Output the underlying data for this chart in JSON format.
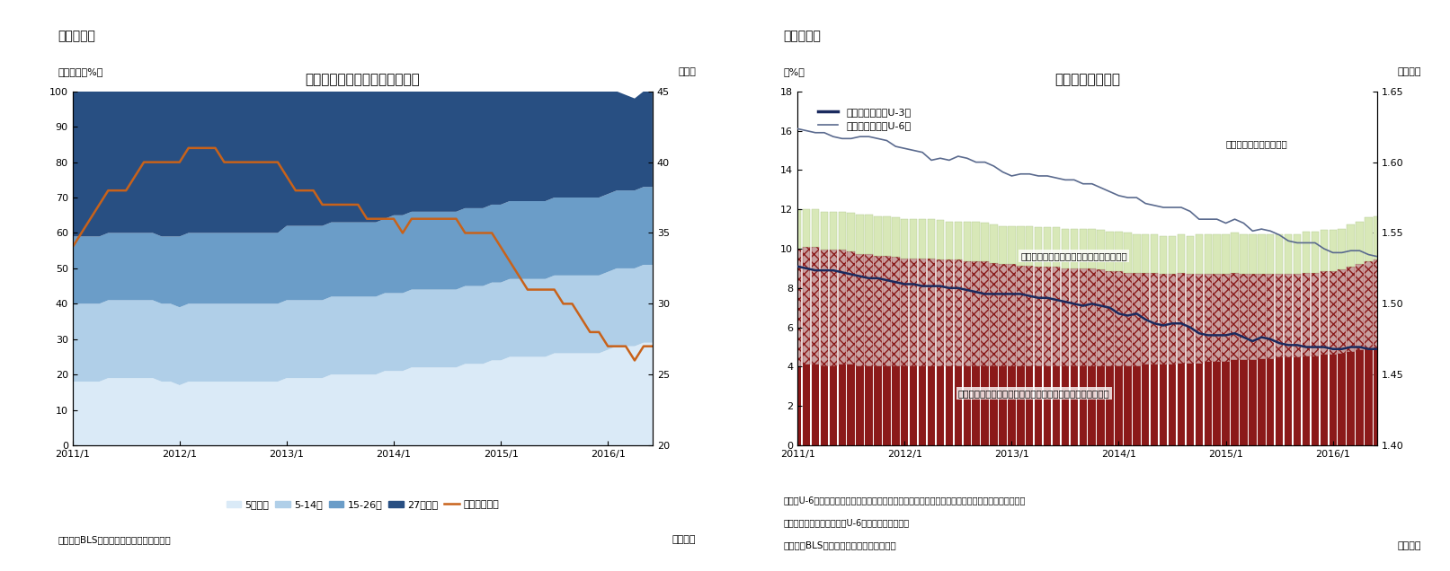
{
  "fig7": {
    "title": "失業期間の分布と平均失業期間",
    "panel_label": "（図表７）",
    "ylabel_left": "（シェア、%）",
    "ylabel_right": "（週）",
    "ylim_left": [
      0,
      100
    ],
    "ylim_right": [
      20,
      45
    ],
    "yticks_left": [
      0,
      10,
      20,
      30,
      40,
      50,
      60,
      70,
      80,
      90,
      100
    ],
    "yticks_right": [
      20,
      25,
      30,
      35,
      40,
      45
    ],
    "source": "（資料）BLSよりニッセイ基礎研究所作成",
    "footnote": "（月次）",
    "colors": {
      "under5": "#daeaf7",
      "5to14": "#b0cfe8",
      "15to26": "#6b9dc8",
      "over27": "#284f82",
      "avg_line": "#c8621a"
    },
    "legend_labels": [
      "5週未満",
      "5-14週",
      "15-26週",
      "27週以上",
      "平均（右軸）"
    ],
    "under5": [
      18,
      18,
      18,
      18,
      19,
      19,
      19,
      19,
      19,
      19,
      18,
      18,
      17,
      18,
      18,
      18,
      18,
      18,
      18,
      18,
      18,
      18,
      18,
      18,
      19,
      19,
      19,
      19,
      19,
      20,
      20,
      20,
      20,
      20,
      20,
      21,
      21,
      21,
      22,
      22,
      22,
      22,
      22,
      22,
      23,
      23,
      23,
      24,
      24,
      25,
      25,
      25,
      25,
      25,
      26,
      26,
      26,
      26,
      26,
      26,
      27,
      28,
      28,
      28,
      29,
      29
    ],
    "5to14": [
      22,
      22,
      22,
      22,
      22,
      22,
      22,
      22,
      22,
      22,
      22,
      22,
      22,
      22,
      22,
      22,
      22,
      22,
      22,
      22,
      22,
      22,
      22,
      22,
      22,
      22,
      22,
      22,
      22,
      22,
      22,
      22,
      22,
      22,
      22,
      22,
      22,
      22,
      22,
      22,
      22,
      22,
      22,
      22,
      22,
      22,
      22,
      22,
      22,
      22,
      22,
      22,
      22,
      22,
      22,
      22,
      22,
      22,
      22,
      22,
      22,
      22,
      22,
      22,
      22,
      22
    ],
    "15to26": [
      19,
      19,
      19,
      19,
      19,
      19,
      19,
      19,
      19,
      19,
      19,
      19,
      20,
      20,
      20,
      20,
      20,
      20,
      20,
      20,
      20,
      20,
      20,
      20,
      21,
      21,
      21,
      21,
      21,
      21,
      21,
      21,
      21,
      21,
      21,
      21,
      22,
      22,
      22,
      22,
      22,
      22,
      22,
      22,
      22,
      22,
      22,
      22,
      22,
      22,
      22,
      22,
      22,
      22,
      22,
      22,
      22,
      22,
      22,
      22,
      22,
      22,
      22,
      22,
      22,
      22
    ],
    "over27": [
      41,
      41,
      41,
      41,
      40,
      40,
      40,
      40,
      40,
      40,
      41,
      42,
      41,
      40,
      40,
      40,
      40,
      40,
      40,
      40,
      40,
      40,
      40,
      40,
      38,
      38,
      38,
      38,
      38,
      37,
      37,
      37,
      37,
      37,
      37,
      37,
      35,
      35,
      34,
      34,
      34,
      34,
      34,
      34,
      33,
      33,
      33,
      32,
      32,
      31,
      31,
      31,
      31,
      31,
      30,
      30,
      30,
      30,
      30,
      30,
      29,
      28,
      27,
      26,
      27,
      27
    ],
    "avg_weeks": [
      34,
      35,
      36,
      37,
      38,
      38,
      38,
      39,
      40,
      40,
      40,
      40,
      40,
      41,
      41,
      41,
      41,
      40,
      40,
      40,
      40,
      40,
      40,
      40,
      39,
      38,
      38,
      38,
      37,
      37,
      37,
      37,
      37,
      36,
      36,
      36,
      36,
      35,
      36,
      36,
      36,
      36,
      36,
      36,
      35,
      35,
      35,
      35,
      34,
      33,
      32,
      31,
      31,
      31,
      31,
      30,
      30,
      29,
      28,
      28,
      27,
      27,
      27,
      26,
      27,
      27
    ],
    "xtick_positions": [
      0,
      12,
      24,
      36,
      48,
      60
    ],
    "xtick_labels": [
      "2011/1",
      "2012/1",
      "2013/1",
      "2014/1",
      "2015/1",
      "2016/1"
    ]
  },
  "fig8": {
    "title": "広義失業率の推移",
    "panel_label": "（図表８）",
    "ylabel_left": "（%）",
    "ylabel_right": "（億人）",
    "ylim_left": [
      0,
      18
    ],
    "ylim_right": [
      1.4,
      1.65
    ],
    "yticks_left": [
      0,
      2,
      4,
      6,
      8,
      10,
      12,
      14,
      16,
      18
    ],
    "yticks_right": [
      1.4,
      1.45,
      1.5,
      1.55,
      1.6,
      1.65
    ],
    "source": "（資料）BLSよりニッセイ基礎研究所作成",
    "footnote": "（月次）",
    "note1": "（注）U-6＝（失業者＋周辺労働力＋経済的理由によるパートタイマー）／（労働力＋周辺労働力）",
    "note2": "　　周辺労働力は失業率（U-6）より逆算して推計",
    "colors": {
      "labor_force": "#8b1a1a",
      "part_timer_face": "#c8a0a0",
      "part_timer_edge": "#8b1a1a",
      "marginal": "#d8e8b8",
      "u3_line": "#1a2a5e",
      "u6_line": "#5a6a8e"
    },
    "legend_labels": [
      "通常の失業率（U-3）",
      "広義の失業率（U-6）"
    ],
    "annotation1": "経済的理由によるパートタイマー（右軸）",
    "annotation2": "労働力人口（経済的理由によるパートタイマー除く、右軸）",
    "annotation3": "周辺労働力人口（右軸）",
    "u3": [
      9.1,
      9.0,
      8.9,
      8.9,
      8.9,
      8.8,
      8.7,
      8.6,
      8.5,
      8.5,
      8.4,
      8.3,
      8.2,
      8.2,
      8.1,
      8.1,
      8.1,
      8.0,
      8.0,
      7.9,
      7.8,
      7.7,
      7.7,
      7.7,
      7.7,
      7.7,
      7.6,
      7.5,
      7.5,
      7.4,
      7.3,
      7.2,
      7.1,
      7.2,
      7.1,
      7.0,
      6.7,
      6.6,
      6.7,
      6.4,
      6.2,
      6.1,
      6.2,
      6.2,
      6.0,
      5.7,
      5.6,
      5.6,
      5.6,
      5.7,
      5.5,
      5.3,
      5.5,
      5.4,
      5.2,
      5.1,
      5.1,
      5.0,
      5.0,
      5.0,
      4.9,
      4.9,
      5.0,
      5.0,
      4.9,
      4.9
    ],
    "u6": [
      16.1,
      16.0,
      15.9,
      15.9,
      15.7,
      15.6,
      15.6,
      15.7,
      15.7,
      15.6,
      15.5,
      15.2,
      15.1,
      15.0,
      14.9,
      14.5,
      14.6,
      14.5,
      14.7,
      14.6,
      14.4,
      14.4,
      14.2,
      13.9,
      13.7,
      13.8,
      13.8,
      13.7,
      13.7,
      13.6,
      13.5,
      13.5,
      13.3,
      13.3,
      13.1,
      12.9,
      12.7,
      12.6,
      12.6,
      12.3,
      12.2,
      12.1,
      12.1,
      12.1,
      11.9,
      11.5,
      11.5,
      11.5,
      11.3,
      11.5,
      11.3,
      10.9,
      11.0,
      10.9,
      10.7,
      10.4,
      10.3,
      10.3,
      10.3,
      10.0,
      9.8,
      9.8,
      9.9,
      9.9,
      9.7,
      9.6
    ],
    "labor_force": [
      1.456,
      1.457,
      1.457,
      1.456,
      1.456,
      1.457,
      1.457,
      1.456,
      1.456,
      1.456,
      1.456,
      1.456,
      1.456,
      1.456,
      1.456,
      1.456,
      1.456,
      1.456,
      1.456,
      1.456,
      1.456,
      1.456,
      1.456,
      1.456,
      1.456,
      1.456,
      1.456,
      1.456,
      1.456,
      1.456,
      1.456,
      1.456,
      1.456,
      1.456,
      1.456,
      1.456,
      1.456,
      1.456,
      1.456,
      1.457,
      1.457,
      1.457,
      1.457,
      1.458,
      1.458,
      1.458,
      1.459,
      1.459,
      1.459,
      1.46,
      1.46,
      1.46,
      1.461,
      1.461,
      1.462,
      1.462,
      1.462,
      1.463,
      1.463,
      1.464,
      1.464,
      1.465,
      1.466,
      1.467,
      1.468,
      1.469
    ],
    "part_timer": [
      0.083,
      0.083,
      0.083,
      0.082,
      0.082,
      0.081,
      0.08,
      0.079,
      0.079,
      0.078,
      0.078,
      0.077,
      0.076,
      0.076,
      0.076,
      0.076,
      0.075,
      0.075,
      0.075,
      0.074,
      0.074,
      0.074,
      0.073,
      0.072,
      0.072,
      0.071,
      0.071,
      0.07,
      0.07,
      0.07,
      0.069,
      0.069,
      0.069,
      0.069,
      0.068,
      0.067,
      0.067,
      0.066,
      0.066,
      0.065,
      0.065,
      0.064,
      0.064,
      0.064,
      0.063,
      0.063,
      0.062,
      0.062,
      0.062,
      0.062,
      0.061,
      0.061,
      0.06,
      0.06,
      0.059,
      0.059,
      0.059,
      0.059,
      0.059,
      0.059,
      0.059,
      0.059,
      0.06,
      0.061,
      0.062,
      0.062
    ],
    "marginal": [
      0.028,
      0.027,
      0.027,
      0.027,
      0.027,
      0.027,
      0.027,
      0.028,
      0.028,
      0.028,
      0.028,
      0.028,
      0.028,
      0.028,
      0.028,
      0.028,
      0.028,
      0.027,
      0.027,
      0.028,
      0.028,
      0.027,
      0.027,
      0.027,
      0.027,
      0.028,
      0.028,
      0.028,
      0.028,
      0.028,
      0.028,
      0.028,
      0.028,
      0.028,
      0.028,
      0.028,
      0.028,
      0.028,
      0.027,
      0.027,
      0.027,
      0.027,
      0.027,
      0.027,
      0.027,
      0.028,
      0.028,
      0.028,
      0.028,
      0.028,
      0.028,
      0.028,
      0.028,
      0.028,
      0.028,
      0.028,
      0.028,
      0.029,
      0.029,
      0.029,
      0.029,
      0.029,
      0.03,
      0.03,
      0.031,
      0.031
    ],
    "xtick_positions": [
      0,
      12,
      24,
      36,
      48,
      60
    ],
    "xtick_labels": [
      "2011/1",
      "2012/1",
      "2013/1",
      "2014/1",
      "2015/1",
      "2016/1"
    ]
  }
}
